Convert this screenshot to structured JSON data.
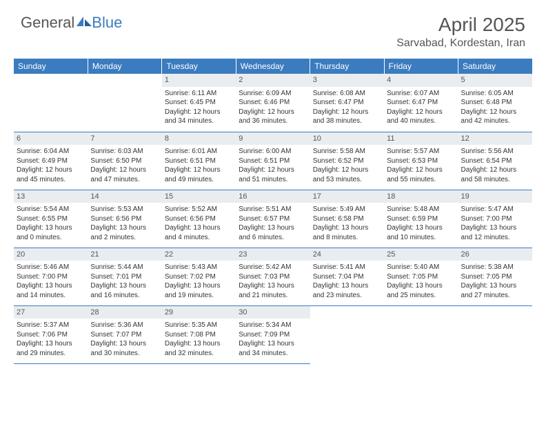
{
  "logo": {
    "text1": "General",
    "text2": "Blue"
  },
  "title": "April 2025",
  "location": "Sarvabad, Kordestan, Iran",
  "colors": {
    "header_bg": "#3b7bbf",
    "header_text": "#ffffff",
    "daynum_bg": "#e9edf0",
    "border": "#3b7bbf",
    "body_text": "#333333",
    "title_text": "#555555"
  },
  "day_headers": [
    "Sunday",
    "Monday",
    "Tuesday",
    "Wednesday",
    "Thursday",
    "Friday",
    "Saturday"
  ],
  "weeks": [
    [
      null,
      null,
      {
        "n": "1",
        "sr": "Sunrise: 6:11 AM",
        "ss": "Sunset: 6:45 PM",
        "d1": "Daylight: 12 hours",
        "d2": "and 34 minutes."
      },
      {
        "n": "2",
        "sr": "Sunrise: 6:09 AM",
        "ss": "Sunset: 6:46 PM",
        "d1": "Daylight: 12 hours",
        "d2": "and 36 minutes."
      },
      {
        "n": "3",
        "sr": "Sunrise: 6:08 AM",
        "ss": "Sunset: 6:47 PM",
        "d1": "Daylight: 12 hours",
        "d2": "and 38 minutes."
      },
      {
        "n": "4",
        "sr": "Sunrise: 6:07 AM",
        "ss": "Sunset: 6:47 PM",
        "d1": "Daylight: 12 hours",
        "d2": "and 40 minutes."
      },
      {
        "n": "5",
        "sr": "Sunrise: 6:05 AM",
        "ss": "Sunset: 6:48 PM",
        "d1": "Daylight: 12 hours",
        "d2": "and 42 minutes."
      }
    ],
    [
      {
        "n": "6",
        "sr": "Sunrise: 6:04 AM",
        "ss": "Sunset: 6:49 PM",
        "d1": "Daylight: 12 hours",
        "d2": "and 45 minutes."
      },
      {
        "n": "7",
        "sr": "Sunrise: 6:03 AM",
        "ss": "Sunset: 6:50 PM",
        "d1": "Daylight: 12 hours",
        "d2": "and 47 minutes."
      },
      {
        "n": "8",
        "sr": "Sunrise: 6:01 AM",
        "ss": "Sunset: 6:51 PM",
        "d1": "Daylight: 12 hours",
        "d2": "and 49 minutes."
      },
      {
        "n": "9",
        "sr": "Sunrise: 6:00 AM",
        "ss": "Sunset: 6:51 PM",
        "d1": "Daylight: 12 hours",
        "d2": "and 51 minutes."
      },
      {
        "n": "10",
        "sr": "Sunrise: 5:58 AM",
        "ss": "Sunset: 6:52 PM",
        "d1": "Daylight: 12 hours",
        "d2": "and 53 minutes."
      },
      {
        "n": "11",
        "sr": "Sunrise: 5:57 AM",
        "ss": "Sunset: 6:53 PM",
        "d1": "Daylight: 12 hours",
        "d2": "and 55 minutes."
      },
      {
        "n": "12",
        "sr": "Sunrise: 5:56 AM",
        "ss": "Sunset: 6:54 PM",
        "d1": "Daylight: 12 hours",
        "d2": "and 58 minutes."
      }
    ],
    [
      {
        "n": "13",
        "sr": "Sunrise: 5:54 AM",
        "ss": "Sunset: 6:55 PM",
        "d1": "Daylight: 13 hours",
        "d2": "and 0 minutes."
      },
      {
        "n": "14",
        "sr": "Sunrise: 5:53 AM",
        "ss": "Sunset: 6:56 PM",
        "d1": "Daylight: 13 hours",
        "d2": "and 2 minutes."
      },
      {
        "n": "15",
        "sr": "Sunrise: 5:52 AM",
        "ss": "Sunset: 6:56 PM",
        "d1": "Daylight: 13 hours",
        "d2": "and 4 minutes."
      },
      {
        "n": "16",
        "sr": "Sunrise: 5:51 AM",
        "ss": "Sunset: 6:57 PM",
        "d1": "Daylight: 13 hours",
        "d2": "and 6 minutes."
      },
      {
        "n": "17",
        "sr": "Sunrise: 5:49 AM",
        "ss": "Sunset: 6:58 PM",
        "d1": "Daylight: 13 hours",
        "d2": "and 8 minutes."
      },
      {
        "n": "18",
        "sr": "Sunrise: 5:48 AM",
        "ss": "Sunset: 6:59 PM",
        "d1": "Daylight: 13 hours",
        "d2": "and 10 minutes."
      },
      {
        "n": "19",
        "sr": "Sunrise: 5:47 AM",
        "ss": "Sunset: 7:00 PM",
        "d1": "Daylight: 13 hours",
        "d2": "and 12 minutes."
      }
    ],
    [
      {
        "n": "20",
        "sr": "Sunrise: 5:46 AM",
        "ss": "Sunset: 7:00 PM",
        "d1": "Daylight: 13 hours",
        "d2": "and 14 minutes."
      },
      {
        "n": "21",
        "sr": "Sunrise: 5:44 AM",
        "ss": "Sunset: 7:01 PM",
        "d1": "Daylight: 13 hours",
        "d2": "and 16 minutes."
      },
      {
        "n": "22",
        "sr": "Sunrise: 5:43 AM",
        "ss": "Sunset: 7:02 PM",
        "d1": "Daylight: 13 hours",
        "d2": "and 19 minutes."
      },
      {
        "n": "23",
        "sr": "Sunrise: 5:42 AM",
        "ss": "Sunset: 7:03 PM",
        "d1": "Daylight: 13 hours",
        "d2": "and 21 minutes."
      },
      {
        "n": "24",
        "sr": "Sunrise: 5:41 AM",
        "ss": "Sunset: 7:04 PM",
        "d1": "Daylight: 13 hours",
        "d2": "and 23 minutes."
      },
      {
        "n": "25",
        "sr": "Sunrise: 5:40 AM",
        "ss": "Sunset: 7:05 PM",
        "d1": "Daylight: 13 hours",
        "d2": "and 25 minutes."
      },
      {
        "n": "26",
        "sr": "Sunrise: 5:38 AM",
        "ss": "Sunset: 7:05 PM",
        "d1": "Daylight: 13 hours",
        "d2": "and 27 minutes."
      }
    ],
    [
      {
        "n": "27",
        "sr": "Sunrise: 5:37 AM",
        "ss": "Sunset: 7:06 PM",
        "d1": "Daylight: 13 hours",
        "d2": "and 29 minutes."
      },
      {
        "n": "28",
        "sr": "Sunrise: 5:36 AM",
        "ss": "Sunset: 7:07 PM",
        "d1": "Daylight: 13 hours",
        "d2": "and 30 minutes."
      },
      {
        "n": "29",
        "sr": "Sunrise: 5:35 AM",
        "ss": "Sunset: 7:08 PM",
        "d1": "Daylight: 13 hours",
        "d2": "and 32 minutes."
      },
      {
        "n": "30",
        "sr": "Sunrise: 5:34 AM",
        "ss": "Sunset: 7:09 PM",
        "d1": "Daylight: 13 hours",
        "d2": "and 34 minutes."
      },
      null,
      null,
      null
    ]
  ]
}
